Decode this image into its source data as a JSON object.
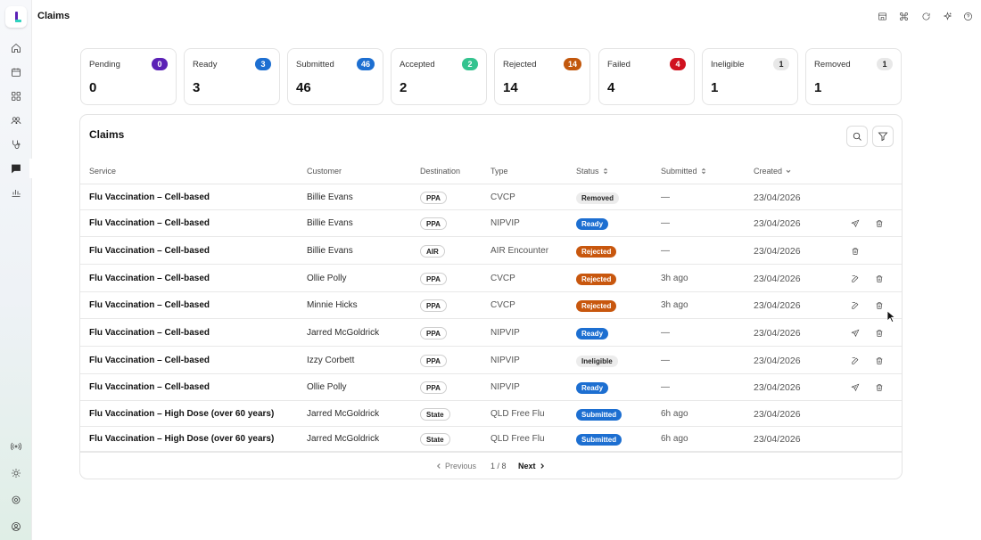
{
  "page": {
    "title": "Claims"
  },
  "sidebar": {
    "top_items": [
      "home-icon",
      "calendar-icon",
      "grid-icon",
      "users-icon",
      "stethoscope-icon",
      "message-icon",
      "chart-icon"
    ],
    "active": "message-icon",
    "bottom_items": [
      "broadcast-icon",
      "sun-icon",
      "settings-icon",
      "account-icon"
    ]
  },
  "topbar": {
    "icons": [
      "store-icon",
      "command-icon",
      "refresh-icon",
      "sparkle-icon",
      "help-icon"
    ]
  },
  "stats": [
    {
      "label": "Pending",
      "count": "0",
      "value": "0",
      "color": "#5b21b6"
    },
    {
      "label": "Ready",
      "count": "3",
      "value": "3",
      "color": "#1d6fd1"
    },
    {
      "label": "Submitted",
      "count": "46",
      "value": "46",
      "color": "#1d6fd1"
    },
    {
      "label": "Accepted",
      "count": "2",
      "value": "2",
      "color": "#34c38f"
    },
    {
      "label": "Rejected",
      "count": "14",
      "value": "14",
      "color": "#c2570c"
    },
    {
      "label": "Failed",
      "count": "4",
      "value": "4",
      "color": "#d0121f"
    },
    {
      "label": "Ineligible",
      "count": "1",
      "value": "1",
      "color": "#e8e8e8"
    },
    {
      "label": "Removed",
      "count": "1",
      "value": "1",
      "color": "#e8e8e8"
    }
  ],
  "claims": {
    "title": "Claims",
    "columns": {
      "service": "Service",
      "customer": "Customer",
      "destination": "Destination",
      "type": "Type",
      "status": "Status",
      "submitted": "Submitted",
      "created": "Created"
    },
    "status_colors": {
      "Removed": {
        "bg": "#ececec",
        "fg": "#222222"
      },
      "Ready": {
        "bg": "#1d6fd1",
        "fg": "#ffffff"
      },
      "Rejected": {
        "bg": "#c8570e",
        "fg": "#ffffff"
      },
      "Ineligible": {
        "bg": "#ececec",
        "fg": "#222222"
      },
      "Submitted": {
        "bg": "#1d6fd1",
        "fg": "#ffffff"
      }
    },
    "rows": [
      {
        "service": "Flu Vaccination – Cell-based",
        "customer": "Billie Evans",
        "destination": "PPA",
        "type": "CVCP",
        "status": "Removed",
        "submitted": "—",
        "created": "23/04/2026",
        "actions": []
      },
      {
        "service": "Flu Vaccination – Cell-based",
        "customer": "Billie Evans",
        "destination": "PPA",
        "type": "NIPVIP",
        "status": "Ready",
        "submitted": "—",
        "created": "23/04/2026",
        "actions": [
          "send-icon",
          "trash-icon"
        ]
      },
      {
        "service": "Flu Vaccination – Cell-based",
        "customer": "Billie Evans",
        "destination": "AIR",
        "type": "AIR Encounter",
        "status": "Rejected",
        "submitted": "—",
        "created": "23/04/2026",
        "actions": [
          "trash-icon"
        ]
      },
      {
        "service": "Flu Vaccination – Cell-based",
        "customer": "Ollie Polly",
        "destination": "PPA",
        "type": "CVCP",
        "status": "Rejected",
        "submitted": "3h ago",
        "created": "23/04/2026",
        "actions": [
          "edit-icon",
          "trash-icon"
        ]
      },
      {
        "service": "Flu Vaccination – Cell-based",
        "customer": "Minnie Hicks",
        "destination": "PPA",
        "type": "CVCP",
        "status": "Rejected",
        "submitted": "3h ago",
        "created": "23/04/2026",
        "actions": [
          "edit-icon",
          "trash-icon"
        ]
      },
      {
        "service": "Flu Vaccination – Cell-based",
        "customer": "Jarred McGoldrick",
        "destination": "PPA",
        "type": "NIPVIP",
        "status": "Ready",
        "submitted": "—",
        "created": "23/04/2026",
        "actions": [
          "send-icon",
          "trash-icon"
        ]
      },
      {
        "service": "Flu Vaccination – Cell-based",
        "customer": "Izzy Corbett",
        "destination": "PPA",
        "type": "NIPVIP",
        "status": "Ineligible",
        "submitted": "—",
        "created": "23/04/2026",
        "actions": [
          "edit-icon",
          "trash-icon"
        ]
      },
      {
        "service": "Flu Vaccination – Cell-based",
        "customer": "Ollie Polly",
        "destination": "PPA",
        "type": "NIPVIP",
        "status": "Ready",
        "submitted": "—",
        "created": "23/04/2026",
        "actions": [
          "send-icon",
          "trash-icon"
        ]
      },
      {
        "service": "Flu Vaccination – High Dose (over 60 years)",
        "customer": "Jarred McGoldrick",
        "destination": "State",
        "type": "QLD Free Flu",
        "status": "Submitted",
        "submitted": "6h ago",
        "created": "23/04/2026",
        "actions": []
      },
      {
        "service": "Flu Vaccination – High Dose (over 60 years)",
        "customer": "Jarred McGoldrick",
        "destination": "State",
        "type": "QLD Free Flu",
        "status": "Submitted",
        "submitted": "6h ago",
        "created": "23/04/2026",
        "actions": []
      }
    ],
    "pagination": {
      "previous": "Previous",
      "page": "1 / 8",
      "next": "Next"
    }
  }
}
